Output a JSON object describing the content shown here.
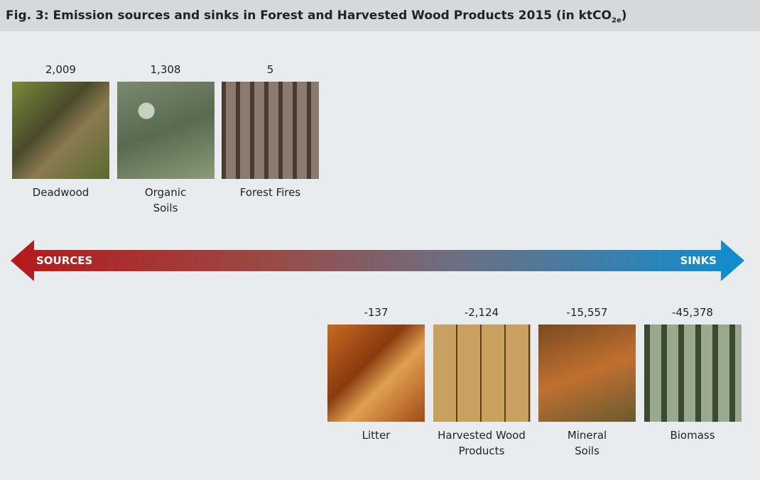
{
  "header": {
    "title": "Fig. 3: Emission sources and sinks in Forest and Harvested Wood Products 2015 (in ktCO",
    "title_subscript": "2e",
    "title_end": ")"
  },
  "sources": {
    "items": [
      {
        "value": "2,009",
        "label": [
          "Deadwood"
        ]
      },
      {
        "value": "1,308",
        "label": [
          "Organic",
          "Soils"
        ]
      },
      {
        "value": "5",
        "label": [
          "Forest Fires"
        ]
      }
    ]
  },
  "arrow": {
    "left_label": "SOURCES",
    "right_label": "SINKS"
  },
  "sinks": {
    "items": [
      {
        "value": "-137",
        "label": [
          "Litter"
        ]
      },
      {
        "value": "-2,124",
        "label": [
          "Harvested Wood",
          "Products"
        ]
      },
      {
        "value": "-15,557",
        "label": [
          "Mineral",
          "Soils"
        ]
      },
      {
        "value": "-45,378",
        "label": [
          "Biomass"
        ]
      }
    ]
  }
}
